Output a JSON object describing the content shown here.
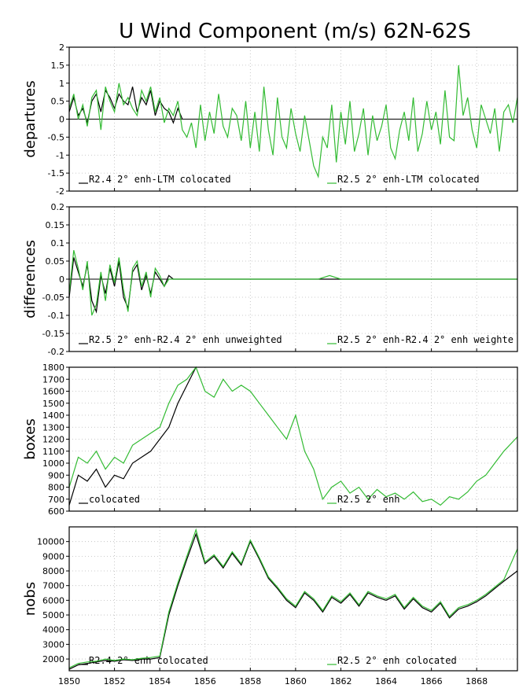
{
  "title": "U Wind Component (m/s) 62N-62S",
  "colors": {
    "series_a": "#000000",
    "series_b": "#33bb33"
  },
  "x_axis": {
    "range": [
      1850,
      1869.8
    ],
    "ticks": [
      1850,
      1852,
      1854,
      1856,
      1858,
      1860,
      1862,
      1864,
      1866,
      1868
    ]
  },
  "chart_data": [
    {
      "type": "line",
      "ylabel": "departures",
      "ylim": [
        -2,
        2
      ],
      "yticks": [
        -2,
        -1.5,
        -1,
        -0.5,
        0,
        0.5,
        1,
        1.5,
        2
      ],
      "zero_line": true,
      "grid": true,
      "series": [
        {
          "name": "R2.4 2° enh-LTM colocated",
          "x": [
            1850.0,
            1850.2,
            1850.4,
            1850.6,
            1850.8,
            1851.0,
            1851.2,
            1851.4,
            1851.6,
            1851.8,
            1852.0,
            1852.2,
            1852.4,
            1852.6,
            1852.8,
            1853.0,
            1853.2,
            1853.4,
            1853.6,
            1853.8,
            1854.0,
            1854.2,
            1854.4,
            1854.6,
            1854.8,
            1855.0
          ],
          "values": [
            0.2,
            0.6,
            0.1,
            0.3,
            -0.1,
            0.5,
            0.7,
            0.2,
            0.8,
            0.6,
            0.3,
            0.7,
            0.5,
            0.4,
            0.9,
            0.2,
            0.6,
            0.4,
            0.8,
            0.1,
            0.5,
            0.3,
            0.2,
            -0.1,
            0.3,
            0.0
          ]
        },
        {
          "name": "R2.5 2° enh-LTM colocated",
          "x": [
            1850.0,
            1850.2,
            1850.4,
            1850.6,
            1850.8,
            1851.0,
            1851.2,
            1851.4,
            1851.6,
            1851.8,
            1852.0,
            1852.2,
            1852.4,
            1852.6,
            1852.8,
            1853.0,
            1853.2,
            1853.4,
            1853.6,
            1853.8,
            1854.0,
            1854.2,
            1854.4,
            1854.6,
            1854.8,
            1855.0,
            1855.2,
            1855.4,
            1855.6,
            1855.8,
            1856.0,
            1856.2,
            1856.4,
            1856.6,
            1856.8,
            1857.0,
            1857.2,
            1857.4,
            1857.6,
            1857.8,
            1858.0,
            1858.2,
            1858.4,
            1858.6,
            1858.8,
            1859.0,
            1859.2,
            1859.4,
            1859.6,
            1859.8,
            1860.0,
            1860.2,
            1860.4,
            1860.6,
            1860.8,
            1861.0,
            1861.2,
            1861.4,
            1861.6,
            1861.8,
            1862.0,
            1862.2,
            1862.4,
            1862.6,
            1862.8,
            1863.0,
            1863.2,
            1863.4,
            1863.6,
            1863.8,
            1864.0,
            1864.2,
            1864.4,
            1864.6,
            1864.8,
            1865.0,
            1865.2,
            1865.4,
            1865.6,
            1865.8,
            1866.0,
            1866.2,
            1866.4,
            1866.6,
            1866.8,
            1867.0,
            1867.2,
            1867.4,
            1867.6,
            1867.8,
            1868.0,
            1868.2,
            1868.4,
            1868.6,
            1868.8,
            1869.0,
            1869.2,
            1869.4,
            1869.6,
            1869.8
          ],
          "values": [
            0.3,
            0.7,
            0.0,
            0.4,
            -0.2,
            0.6,
            0.8,
            -0.3,
            0.9,
            0.5,
            0.2,
            1.0,
            0.4,
            0.6,
            0.3,
            0.1,
            0.8,
            0.5,
            0.9,
            0.2,
            0.6,
            -0.1,
            0.3,
            0.1,
            0.5,
            -0.3,
            -0.5,
            -0.1,
            -0.8,
            0.4,
            -0.6,
            0.2,
            -0.4,
            0.7,
            -0.2,
            -0.5,
            0.3,
            0.1,
            -0.6,
            0.5,
            -0.8,
            0.2,
            -0.9,
            0.9,
            -0.3,
            -1.0,
            0.6,
            -0.5,
            -0.8,
            0.3,
            -0.4,
            -0.9,
            0.1,
            -0.6,
            -1.3,
            -1.6,
            -0.5,
            -0.8,
            0.4,
            -1.2,
            0.2,
            -0.7,
            0.5,
            -0.9,
            -0.4,
            0.3,
            -1.0,
            0.1,
            -0.6,
            -0.2,
            0.4,
            -0.8,
            -1.1,
            -0.3,
            0.2,
            -0.6,
            0.6,
            -0.9,
            -0.4,
            0.5,
            -0.3,
            0.2,
            -0.7,
            0.8,
            -0.5,
            -0.6,
            1.5,
            0.1,
            0.6,
            -0.3,
            -0.8,
            0.4,
            0.0,
            -0.4,
            0.3,
            -0.9,
            0.2,
            0.4,
            -0.1,
            0.6
          ]
        }
      ]
    },
    {
      "type": "line",
      "ylabel": "differences",
      "ylim": [
        -0.2,
        0.2
      ],
      "yticks": [
        -0.2,
        -0.15,
        -0.1,
        -0.05,
        0,
        0.05,
        0.1,
        0.15,
        0.2
      ],
      "zero_line": true,
      "grid": true,
      "series": [
        {
          "name": "R2.5 2° enh-R2.4 2° enh unweighted",
          "x": [
            1850.0,
            1850.2,
            1850.4,
            1850.6,
            1850.8,
            1851.0,
            1851.2,
            1851.4,
            1851.6,
            1851.8,
            1852.0,
            1852.2,
            1852.4,
            1852.6,
            1852.8,
            1853.0,
            1853.2,
            1853.4,
            1853.6,
            1853.8,
            1854.0,
            1854.2,
            1854.4,
            1854.6,
            1854.8,
            1855.0,
            1855.5,
            1856,
            1857,
            1858,
            1859,
            1860,
            1861,
            1862,
            1863,
            1864,
            1865,
            1866,
            1867,
            1868,
            1869,
            1869.8
          ],
          "values": [
            -0.05,
            0.06,
            0.02,
            -0.02,
            0.04,
            -0.06,
            -0.09,
            0.01,
            -0.04,
            0.03,
            -0.02,
            0.05,
            -0.05,
            -0.08,
            0.02,
            0.04,
            -0.03,
            0.01,
            -0.04,
            0.02,
            0.0,
            -0.02,
            0.01,
            0.0,
            0.0,
            0.0,
            0.0,
            0.0,
            0.0,
            0.0,
            0.0,
            0.0,
            0.0,
            0.0,
            0.0,
            0.0,
            0.0,
            0.0,
            0.0,
            0.0,
            0.0,
            0.0
          ]
        },
        {
          "name": "R2.5 2° enh-R2.4 2° enh weighte",
          "x": [
            1850.0,
            1850.2,
            1850.4,
            1850.6,
            1850.8,
            1851.0,
            1851.2,
            1851.4,
            1851.6,
            1851.8,
            1852.0,
            1852.2,
            1852.4,
            1852.6,
            1852.8,
            1853.0,
            1853.2,
            1853.4,
            1853.6,
            1853.8,
            1854.0,
            1854.2,
            1854.4,
            1854.6,
            1854.8,
            1855.0,
            1855.5,
            1856,
            1856.5,
            1857,
            1858,
            1859,
            1860,
            1861,
            1861.5,
            1862,
            1862.5,
            1863,
            1864,
            1864.5,
            1865,
            1866,
            1867,
            1868,
            1868.5,
            1869,
            1869.8
          ],
          "values": [
            -0.04,
            0.08,
            0.03,
            -0.03,
            0.05,
            -0.1,
            -0.07,
            0.02,
            -0.06,
            0.04,
            -0.01,
            0.06,
            -0.03,
            -0.09,
            0.03,
            0.05,
            -0.02,
            0.02,
            -0.05,
            0.03,
            0.01,
            -0.02,
            0.0,
            0.0,
            0.0,
            0.0,
            0.0,
            0.0,
            0.0,
            0.0,
            0.0,
            0.0,
            0.0,
            0.0,
            0.01,
            0.0,
            0.0,
            0.0,
            0.0,
            0.0,
            0.0,
            0.0,
            0.0,
            0.0,
            0.0,
            0.0,
            0.0
          ]
        }
      ]
    },
    {
      "type": "line",
      "ylabel": "boxes",
      "ylim": [
        600,
        1800
      ],
      "yticks": [
        600,
        700,
        800,
        900,
        1000,
        1100,
        1200,
        1300,
        1400,
        1500,
        1600,
        1700,
        1800
      ],
      "zero_line": false,
      "grid": true,
      "series": [
        {
          "name": "colocated",
          "x": [
            1850.0,
            1850.4,
            1850.8,
            1851.2,
            1851.6,
            1852.0,
            1852.4,
            1852.8,
            1853.2,
            1853.6,
            1854.0,
            1854.4,
            1854.8,
            1855.2,
            1855.6
          ],
          "values": [
            650,
            900,
            850,
            950,
            800,
            900,
            870,
            1000,
            1050,
            1100,
            1200,
            1300,
            1500,
            1650,
            1800
          ]
        },
        {
          "name": "R2.5 2° enh",
          "x": [
            1850.0,
            1850.4,
            1850.8,
            1851.2,
            1851.6,
            1852.0,
            1852.4,
            1852.8,
            1853.2,
            1853.6,
            1854.0,
            1854.4,
            1854.8,
            1855.2,
            1855.6,
            1856.0,
            1856.4,
            1856.8,
            1857.2,
            1857.6,
            1858.0,
            1858.4,
            1858.8,
            1859.2,
            1859.6,
            1860.0,
            1860.4,
            1860.8,
            1861.2,
            1861.6,
            1862.0,
            1862.4,
            1862.8,
            1863.2,
            1863.6,
            1864.0,
            1864.4,
            1864.8,
            1865.2,
            1865.6,
            1866.0,
            1866.4,
            1866.8,
            1867.2,
            1867.6,
            1868.0,
            1868.4,
            1868.8,
            1869.2,
            1869.8
          ],
          "values": [
            800,
            1050,
            1000,
            1100,
            950,
            1050,
            1000,
            1150,
            1200,
            1250,
            1300,
            1500,
            1650,
            1700,
            1800,
            1600,
            1550,
            1700,
            1600,
            1650,
            1600,
            1500,
            1400,
            1300,
            1200,
            1400,
            1100,
            950,
            700,
            800,
            850,
            750,
            800,
            700,
            780,
            720,
            750,
            700,
            760,
            680,
            700,
            650,
            720,
            700,
            760,
            850,
            900,
            1000,
            1100,
            1220
          ]
        }
      ]
    },
    {
      "type": "line",
      "ylabel": "nobs",
      "ylim": [
        1200,
        11000
      ],
      "yticks": [
        2000,
        3000,
        4000,
        5000,
        6000,
        7000,
        8000,
        9000,
        10000
      ],
      "zero_line": false,
      "grid": true,
      "series": [
        {
          "name": "R2.4 2° enh colocated",
          "x": [
            1850.0,
            1850.4,
            1850.8,
            1851.2,
            1851.6,
            1852.0,
            1852.4,
            1852.8,
            1853.2,
            1853.6,
            1854.0,
            1854.4,
            1854.8,
            1855.2,
            1855.6,
            1856.0,
            1856.4,
            1856.8,
            1857.2,
            1857.6,
            1858.0,
            1858.4,
            1858.8,
            1859.2,
            1859.6,
            1860.0,
            1860.4,
            1860.8,
            1861.2,
            1861.6,
            1862.0,
            1862.4,
            1862.8,
            1863.2,
            1863.6,
            1864.0,
            1864.4,
            1864.8,
            1865.2,
            1865.6,
            1866.0,
            1866.4,
            1866.8,
            1867.2,
            1867.6,
            1868.0,
            1868.4,
            1868.8,
            1869.2,
            1869.8
          ],
          "values": [
            1300,
            1600,
            1700,
            1800,
            1900,
            1850,
            1950,
            1900,
            2000,
            2000,
            2100,
            5000,
            7000,
            8800,
            10500,
            8500,
            9000,
            8200,
            9200,
            8400,
            10000,
            8800,
            7500,
            6800,
            6000,
            5500,
            6500,
            6000,
            5200,
            6200,
            5800,
            6400,
            5600,
            6500,
            6200,
            6000,
            6300,
            5400,
            6100,
            5500,
            5200,
            5800,
            4800,
            5400,
            5600,
            5900,
            6300,
            6800,
            7300,
            8000
          ]
        },
        {
          "name": "R2.5 2° enh colocated",
          "x": [
            1850.0,
            1850.4,
            1850.8,
            1851.2,
            1851.6,
            1852.0,
            1852.4,
            1852.8,
            1853.2,
            1853.6,
            1854.0,
            1854.4,
            1854.8,
            1855.2,
            1855.6,
            1856.0,
            1856.4,
            1856.8,
            1857.2,
            1857.6,
            1858.0,
            1858.4,
            1858.8,
            1859.2,
            1859.6,
            1860.0,
            1860.4,
            1860.8,
            1861.2,
            1861.6,
            1862.0,
            1862.4,
            1862.8,
            1863.2,
            1863.6,
            1864.0,
            1864.4,
            1864.8,
            1865.2,
            1865.6,
            1866.0,
            1866.4,
            1866.8,
            1867.2,
            1867.6,
            1868.0,
            1868.4,
            1868.8,
            1869.2,
            1869.8
          ],
          "values": [
            1400,
            1700,
            1800,
            1850,
            2000,
            1900,
            2000,
            1950,
            2050,
            2100,
            2200,
            5200,
            7200,
            9000,
            10800,
            8600,
            9100,
            8300,
            9300,
            8500,
            10100,
            8900,
            7600,
            6900,
            6100,
            5600,
            6600,
            6100,
            5300,
            6300,
            5900,
            6500,
            5700,
            6600,
            6300,
            6100,
            6400,
            5500,
            6200,
            5600,
            5300,
            5900,
            4900,
            5500,
            5700,
            6000,
            6400,
            6900,
            7400,
            9500
          ]
        }
      ]
    }
  ]
}
